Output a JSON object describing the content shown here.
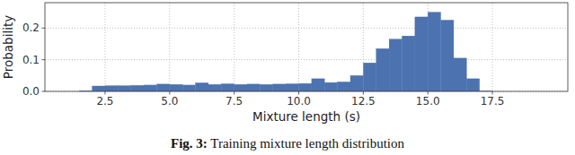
{
  "chart_data": {
    "type": "histogram",
    "title": "Fig. 3: Training mixture length distribution",
    "x_label": "Mixture length (s)",
    "y_label": "Probability",
    "bins": [
      1.5,
      2,
      2.5,
      3,
      3.5,
      4,
      4.5,
      5,
      5.5,
      6,
      6.5,
      7,
      7.5,
      8,
      8.5,
      9,
      9.5,
      10,
      10.5,
      11,
      11.5,
      12,
      12.5,
      13,
      13.5,
      14,
      14.5,
      15,
      15.5,
      16,
      16.5,
      17,
      17.5
    ],
    "values": [
      0.002,
      0.017,
      0.018,
      0.018,
      0.019,
      0.02,
      0.023,
      0.022,
      0.02,
      0.027,
      0.022,
      0.024,
      0.022,
      0.023,
      0.022,
      0.023,
      0.024,
      0.025,
      0.04,
      0.028,
      0.03,
      0.05,
      0.09,
      0.135,
      0.165,
      0.175,
      0.235,
      0.25,
      0.225,
      0.105,
      0.04,
      0.001
    ],
    "color": "#4c72b0",
    "xlim": [
      0.17,
      20.42
    ],
    "ylim": [
      0,
      0.28
    ],
    "xticks": [
      {
        "value": 2.5,
        "label": "2.5"
      },
      {
        "value": 5,
        "label": "5.0"
      },
      {
        "value": 7.5,
        "label": "7.5"
      },
      {
        "value": 10,
        "label": "10.0"
      },
      {
        "value": 12.5,
        "label": "12.5"
      },
      {
        "value": 15,
        "label": "15.0"
      },
      {
        "value": 17.5,
        "label": "17.5"
      }
    ],
    "yticks": [
      {
        "value": 0,
        "label": "0.0"
      },
      0.1,
      0.2
    ],
    "grid": true
  }
}
